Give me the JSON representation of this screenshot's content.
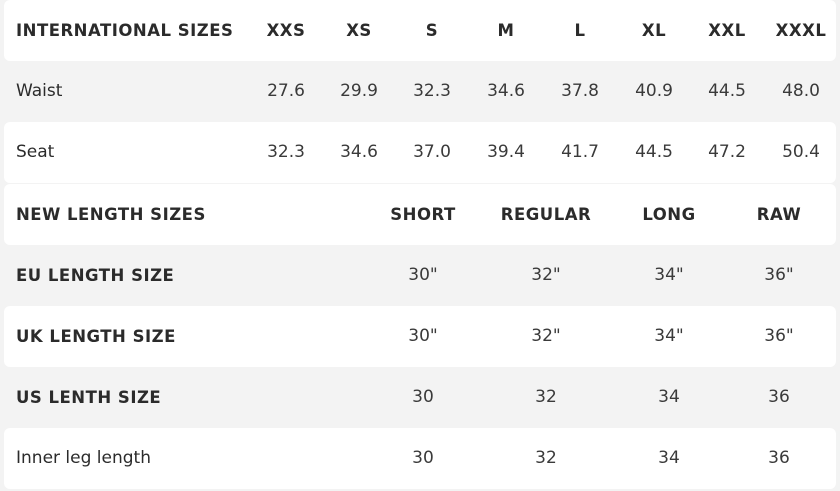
{
  "international": {
    "header": {
      "label": "INTERNATIONAL SIZES",
      "sizes": [
        "XXS",
        "XS",
        "S",
        "M",
        "L",
        "XL",
        "XXL",
        "XXXL"
      ]
    },
    "rows": [
      {
        "label": "Waist",
        "values": [
          "27.6",
          "29.9",
          "32.3",
          "34.6",
          "37.8",
          "40.9",
          "44.5",
          "48.0"
        ]
      },
      {
        "label": "Seat",
        "values": [
          "32.3",
          "34.6",
          "37.0",
          "39.4",
          "41.7",
          "44.5",
          "47.2",
          "50.4"
        ]
      }
    ]
  },
  "length": {
    "header": {
      "label": "NEW LENGTH SIZES",
      "sizes": [
        "SHORT",
        "REGULAR",
        "LONG",
        "RAW"
      ]
    },
    "rows": [
      {
        "label": "EU LENGTH SIZE",
        "values": [
          "30\"",
          "32\"",
          "34\"",
          "36\""
        ]
      },
      {
        "label": "UK LENGTH SIZE",
        "values": [
          "30\"",
          "32\"",
          "34\"",
          "36\""
        ]
      },
      {
        "label": "US LENTH SIZE",
        "values": [
          "30",
          "32",
          "34",
          "36"
        ]
      },
      {
        "label": "Inner leg length",
        "values": [
          "30",
          "32",
          "34",
          "36"
        ]
      }
    ]
  },
  "colors": {
    "background": "#f3f3f3",
    "row": "#ffffff",
    "text": "#2b2b2b"
  }
}
